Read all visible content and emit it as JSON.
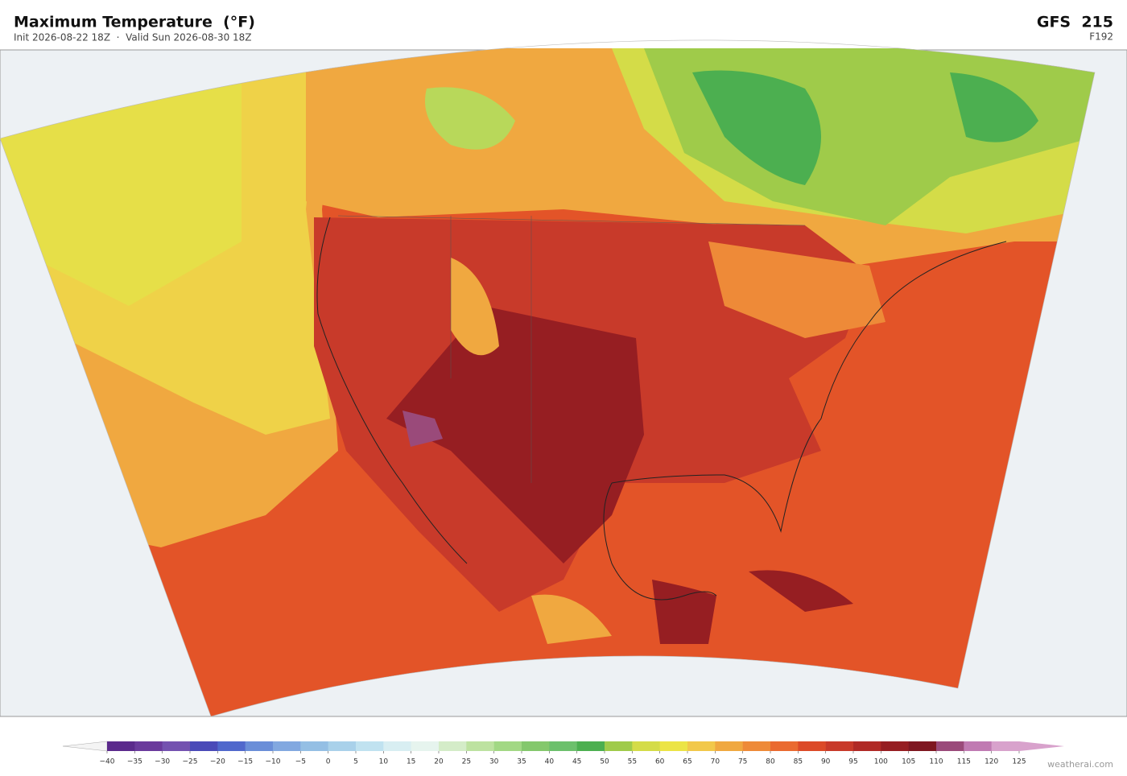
{
  "header": {
    "title": "Maximum Temperature  (°F)",
    "subtitle": "Init 2026-08-22 18Z  ·  Valid Sun 2026-08-30 18Z",
    "model": "GFS  215",
    "forecast": "F192"
  },
  "colorbar": {
    "ticks": [
      {
        "value": -40,
        "label": "−40"
      },
      {
        "value": -35,
        "label": "−35"
      },
      {
        "value": -30,
        "label": "−30"
      },
      {
        "value": -25,
        "label": "−25"
      },
      {
        "value": -20,
        "label": "−20"
      },
      {
        "value": -15,
        "label": "−15"
      },
      {
        "value": -10,
        "label": "−10"
      },
      {
        "value": -5,
        "label": "−5"
      },
      0,
      5,
      10,
      15,
      20,
      25,
      30,
      35,
      40,
      45,
      50,
      55,
      60,
      65,
      70,
      75,
      80,
      85,
      90,
      95,
      100,
      105,
      110,
      115,
      120,
      125
    ],
    "colors": [
      "#5b2a8c",
      "#6a3a9c",
      "#7452b0",
      "#4a4ab8",
      "#5068cc",
      "#6a8ed8",
      "#82a8e0",
      "#94bfe4",
      "#a9d1ea",
      "#c0e2f0",
      "#d8eef2",
      "#e6f4ee",
      "#d4ecc8",
      "#bde2a0",
      "#a2d884",
      "#84c86c",
      "#6cc06c",
      "#4caf50",
      "#9fcb4a",
      "#d4dc48",
      "#ece445",
      "#f2c84a",
      "#f0a840",
      "#ee8a38",
      "#ea6a30",
      "#dc4a28",
      "#c83a2a",
      "#b02a26",
      "#961e22",
      "#7e1620",
      "#9a4a7a",
      "#c07ab2",
      "#d8a2cc"
    ],
    "under_color": "#f4f4f4",
    "over_color": "#d8a2cc"
  },
  "footer": {
    "credit": "weatherai.com"
  }
}
